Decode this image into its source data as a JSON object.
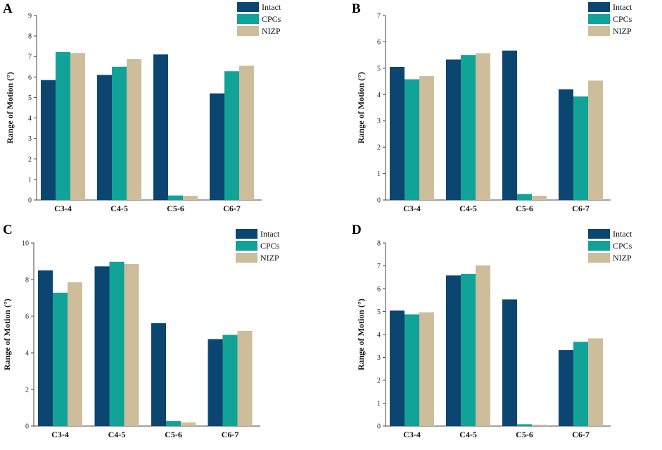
{
  "colors": {
    "Intact": "#0b4670",
    "CPCs": "#12a398",
    "NIZP": "#cdbd9b"
  },
  "chart_data": [
    {
      "type": "bar",
      "panel": "A",
      "categories": [
        "C3-4",
        "C4-5",
        "C5-6",
        "C6-7"
      ],
      "series": [
        {
          "name": "Intact",
          "values": [
            5.85,
            6.1,
            7.1,
            5.2
          ]
        },
        {
          "name": "CPCs",
          "values": [
            7.22,
            6.5,
            0.22,
            6.28
          ]
        },
        {
          "name": "NIZP",
          "values": [
            7.17,
            6.87,
            0.2,
            6.55
          ]
        }
      ],
      "ylabel": "Range of Motion (°)",
      "ylim": [
        0,
        9
      ],
      "yticks": [
        "0",
        "1",
        "2",
        "3",
        "4",
        "5",
        "6",
        "7",
        "8",
        "9"
      ],
      "legend": "top-right"
    },
    {
      "type": "bar",
      "panel": "B",
      "categories": [
        "C3-4",
        "C4-5",
        "C5-6",
        "C6-7"
      ],
      "series": [
        {
          "name": "Intact",
          "values": [
            5.05,
            5.33,
            5.67,
            4.2
          ]
        },
        {
          "name": "CPCs",
          "values": [
            4.58,
            5.5,
            0.23,
            3.93
          ]
        },
        {
          "name": "NIZP",
          "values": [
            4.7,
            5.57,
            0.16,
            4.53
          ]
        }
      ],
      "ylabel": "Range of Motion (°)",
      "ylim": [
        0,
        7
      ],
      "yticks": [
        "0",
        "1",
        "2",
        "3",
        "4",
        "5",
        "6",
        "7"
      ],
      "legend": "top-right"
    },
    {
      "type": "bar",
      "panel": "C",
      "categories": [
        "C3-4",
        "C4-5",
        "C5-6",
        "C6-7"
      ],
      "series": [
        {
          "name": "Intact",
          "values": [
            8.5,
            8.72,
            5.62,
            4.75
          ]
        },
        {
          "name": "CPCs",
          "values": [
            7.28,
            8.97,
            0.27,
            4.98
          ]
        },
        {
          "name": "NIZP",
          "values": [
            7.86,
            8.85,
            0.2,
            5.2
          ]
        }
      ],
      "ylabel": "Range of Motion (°)",
      "ylim": [
        0,
        10
      ],
      "yticks": [
        "0",
        "2",
        "4",
        "6",
        "8",
        "10"
      ],
      "legend": "top-right"
    },
    {
      "type": "bar",
      "panel": "D",
      "categories": [
        "C3-4",
        "C4-5",
        "C5-6",
        "C6-7"
      ],
      "series": [
        {
          "name": "Intact",
          "values": [
            5.05,
            6.58,
            5.53,
            3.32
          ]
        },
        {
          "name": "CPCs",
          "values": [
            4.88,
            6.65,
            0.08,
            3.68
          ]
        },
        {
          "name": "NIZP",
          "values": [
            4.97,
            7.02,
            0.06,
            3.83
          ]
        }
      ],
      "ylabel": "Range of Motion (°)",
      "ylim": [
        0,
        8
      ],
      "yticks": [
        "0",
        "1",
        "2",
        "3",
        "4",
        "5",
        "6",
        "7",
        "8"
      ],
      "legend": "top-right"
    }
  ]
}
